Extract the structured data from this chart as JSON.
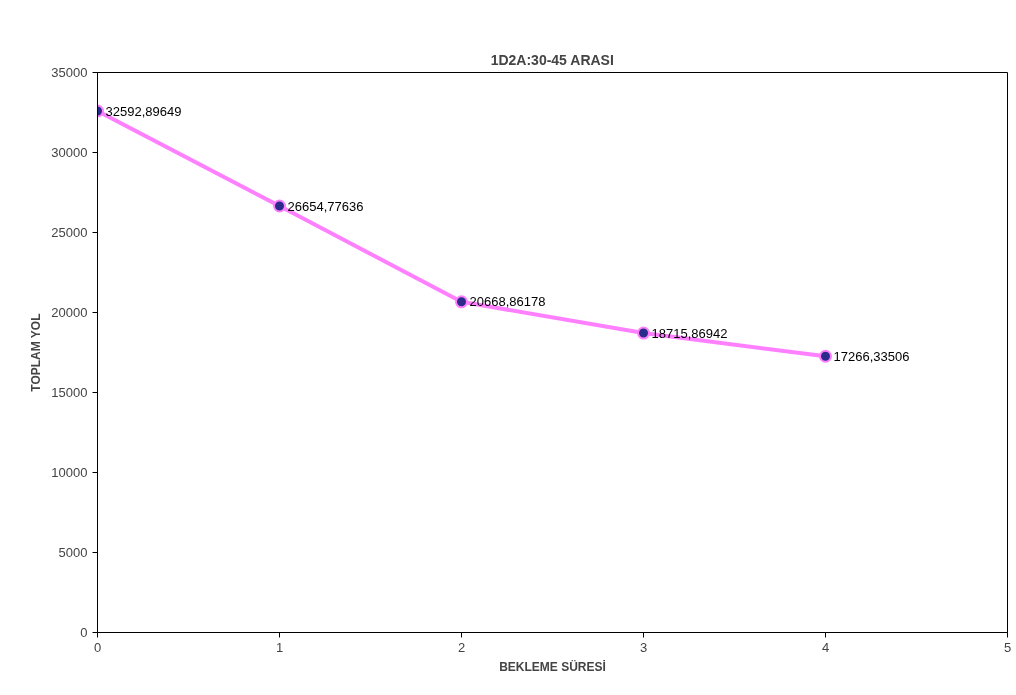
{
  "chart_data": {
    "type": "line",
    "title": "1D2A:30-45 ARASI",
    "xlabel": "BEKLEME SÜRESİ",
    "ylabel": "TOPLAM YOL",
    "x": [
      0,
      1,
      2,
      3,
      4
    ],
    "series": [
      {
        "color": "#ff80ff",
        "values": [
          32592.89649,
          26654.77636,
          20668.86178,
          18715.86942,
          17266.33506
        ],
        "value_labels": [
          "32592,89649",
          "26654,77636",
          "20668,86178",
          "18715,86942",
          "17266,33506"
        ]
      }
    ],
    "xlim": [
      0,
      5
    ],
    "xticks": [
      0,
      1,
      2,
      3,
      4,
      5
    ],
    "ylim": [
      0,
      35000
    ],
    "yticks": [
      0,
      5000,
      10000,
      15000,
      20000,
      25000,
      30000,
      35000
    ],
    "marker": "circle",
    "line_style": "solid",
    "grid": false
  }
}
